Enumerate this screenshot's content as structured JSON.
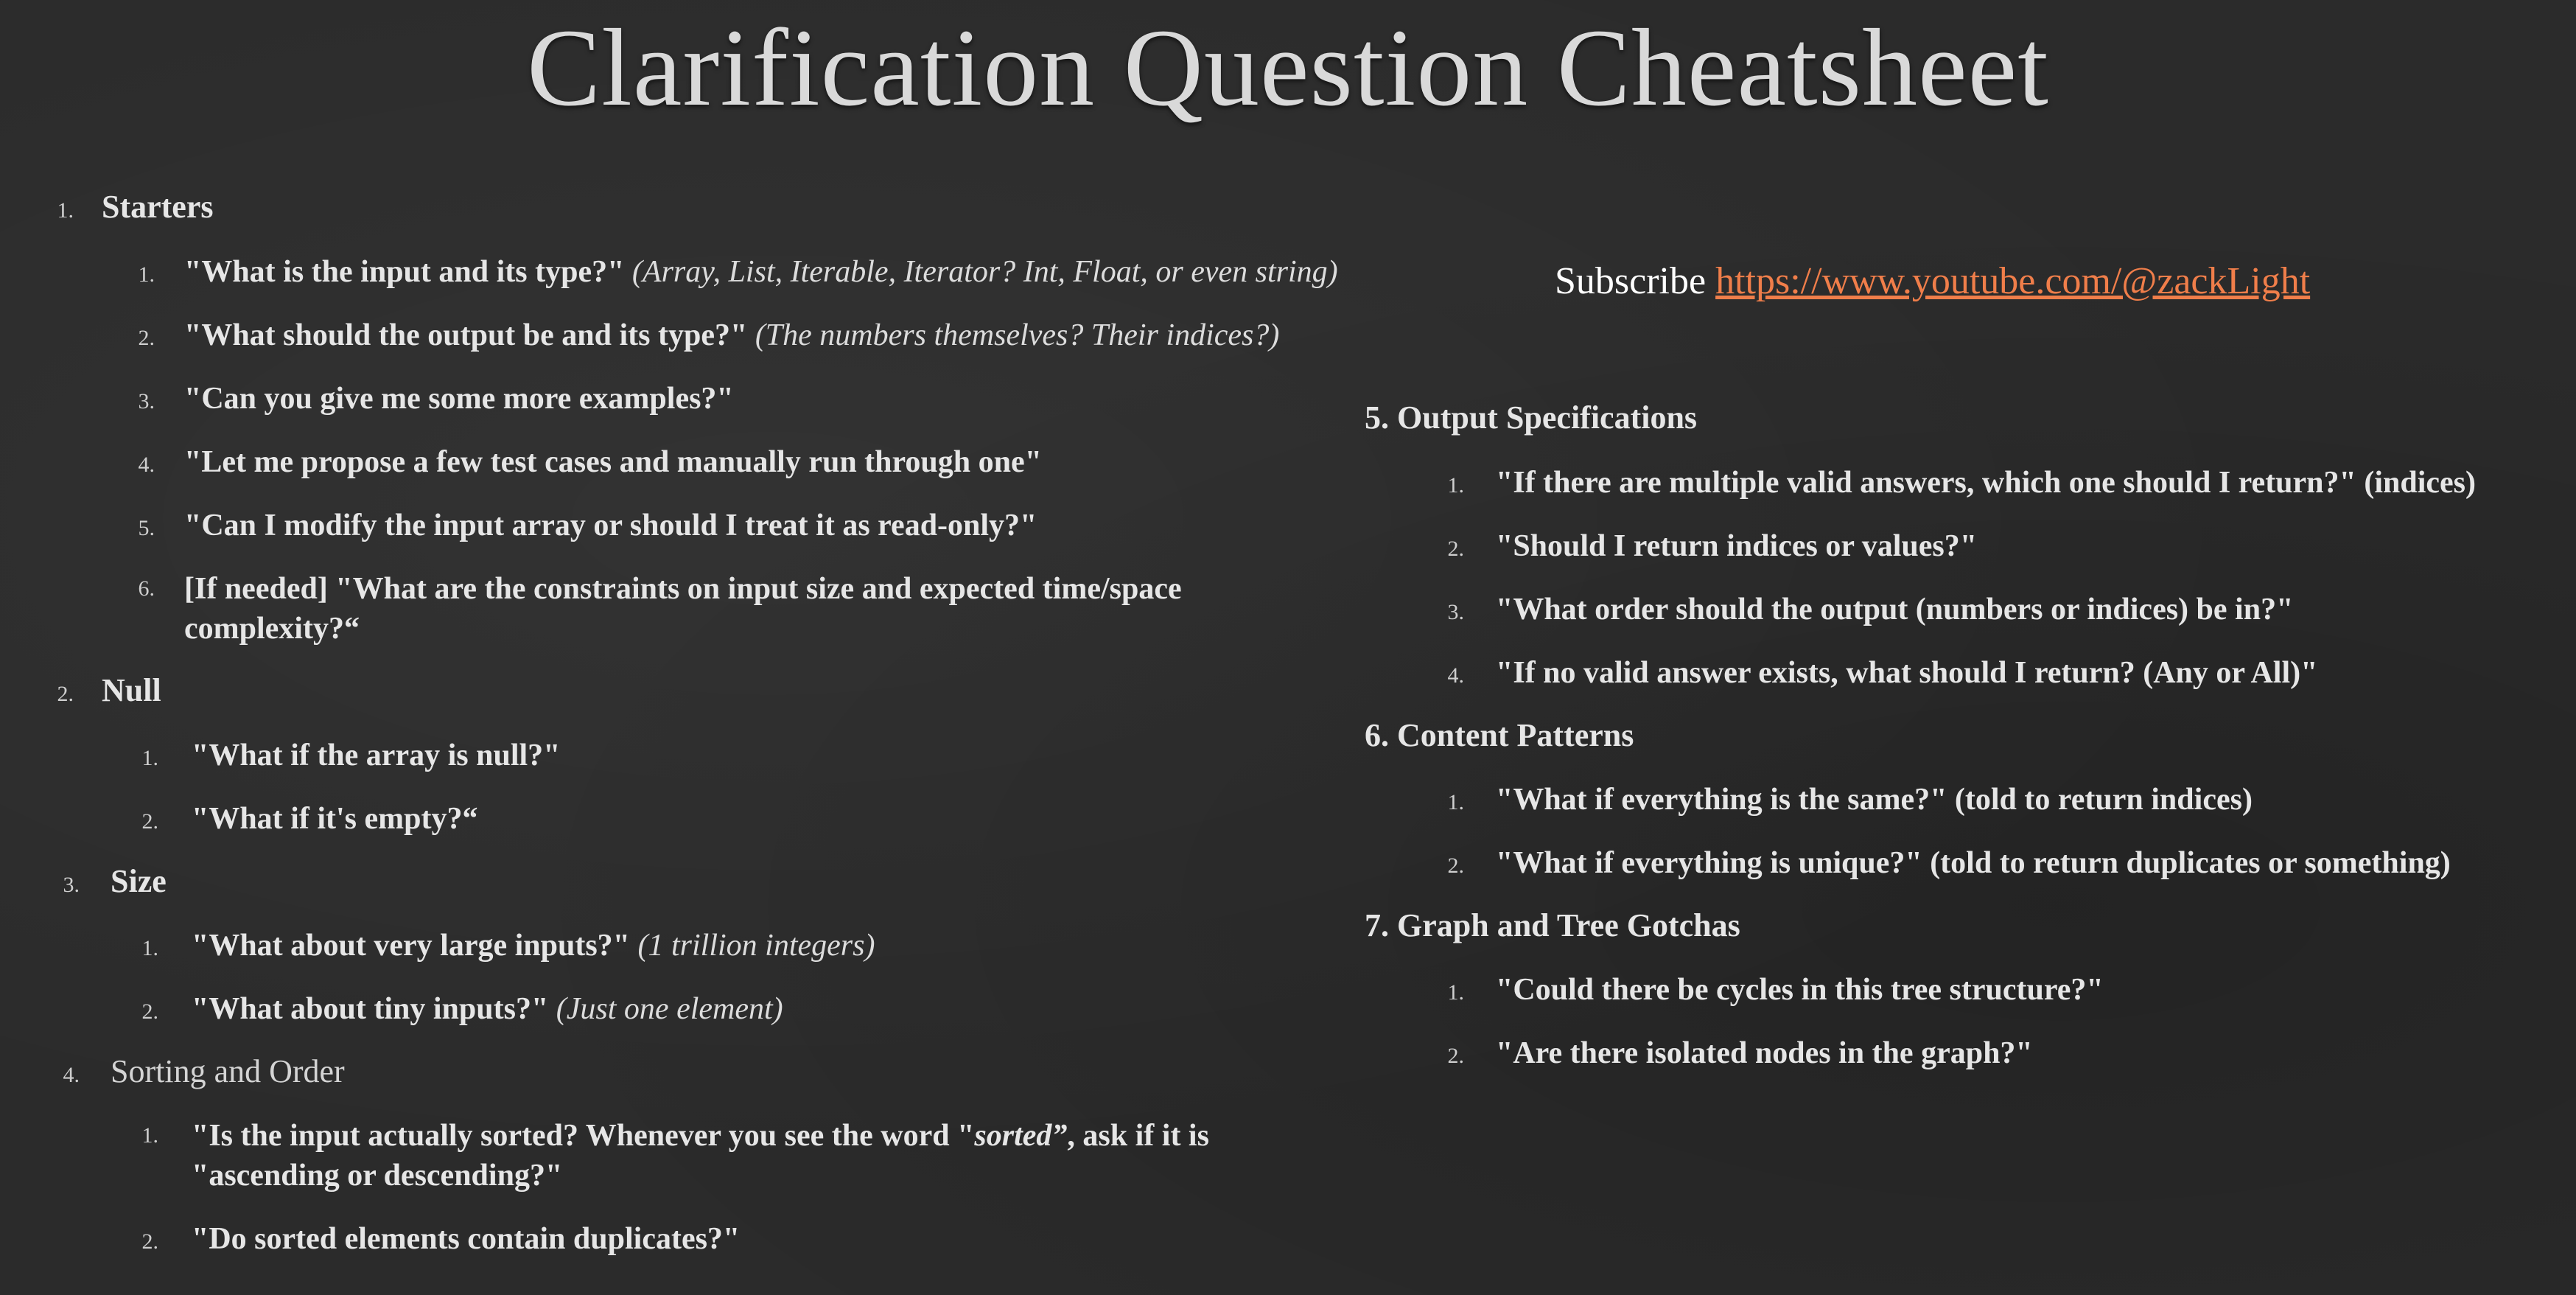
{
  "title": "Clarification Question Cheatsheet",
  "subscribe": {
    "label": "Subscribe",
    "link": "https://www.youtube.com/@zackLight",
    "link_color": "#f07e4a"
  },
  "left": {
    "s1": {
      "num": "1.",
      "label": "Starters",
      "items": [
        {
          "num": "1.",
          "text": "\"What is the input and its type?\"",
          "note": "(Array, List, Iterable, Iterator? Int, Float, or even string)"
        },
        {
          "num": "2.",
          "text": "\"What should the output be and its type?\"",
          "note": "(The numbers themselves? Their indices?)"
        },
        {
          "num": "3.",
          "text": "\"Can you give me some more examples?\""
        },
        {
          "num": "4.",
          "text": "\"Let me propose a few test cases and manually run through one\""
        },
        {
          "num": "5.",
          "text": "\"Can I modify the input array or should I treat it as read-only?\""
        },
        {
          "num": "6.",
          "line1": "[If needed] \"What are the constraints on input size and expected time/space",
          "line2": "complexity?“"
        }
      ]
    },
    "s2": {
      "num": "2.",
      "label": "Null",
      "items": [
        {
          "num": "1.",
          "text": "\"What if the array is null?\""
        },
        {
          "num": "2.",
          "text": "\"What if it's empty?“"
        }
      ]
    },
    "s3": {
      "num": "3.",
      "label": "Size",
      "items": [
        {
          "num": "1.",
          "text": "\"What about very large inputs?\"",
          "note": "(1 trillion integers)"
        },
        {
          "num": "2.",
          "text": "\"What about tiny inputs?\"",
          "note": "(Just one element)"
        }
      ]
    },
    "s4": {
      "num": "4.",
      "label": "Sorting and Order",
      "items": [
        {
          "num": "1.",
          "pre": "\"Is the input actually sorted? Whenever you see the word \"",
          "em": "sorted”",
          "post": ", ask if it is",
          "line2": "\"ascending or descending?\""
        },
        {
          "num": "2.",
          "text": "\"Do sorted elements contain duplicates?\""
        }
      ]
    }
  },
  "right": {
    "s5": {
      "label": "5. Output Specifications",
      "items": [
        {
          "num": "1.",
          "text": "\"If there are multiple valid answers, which one should I return?\" (indices)"
        },
        {
          "num": "2.",
          "text": "\"Should I return indices or values?\""
        },
        {
          "num": "3.",
          "text": "\"What order should the output (numbers or indices) be in?\""
        },
        {
          "num": "4.",
          "text": "\"If no valid answer exists, what should I return? (Any or All)\""
        }
      ]
    },
    "s6": {
      "label": "6. Content Patterns",
      "items": [
        {
          "num": "1.",
          "text": "\"What if everything is the same?\" (told to return indices)"
        },
        {
          "num": "2.",
          "text": "\"What if everything is unique?\" (told to return duplicates or something)"
        }
      ]
    },
    "s7": {
      "label": "7. Graph and Tree Gotchas",
      "items": [
        {
          "num": "1.",
          "text": "\"Could there be cycles in this tree structure?\""
        },
        {
          "num": "2.",
          "text": "\"Are there isolated nodes in the graph?\""
        }
      ]
    }
  }
}
